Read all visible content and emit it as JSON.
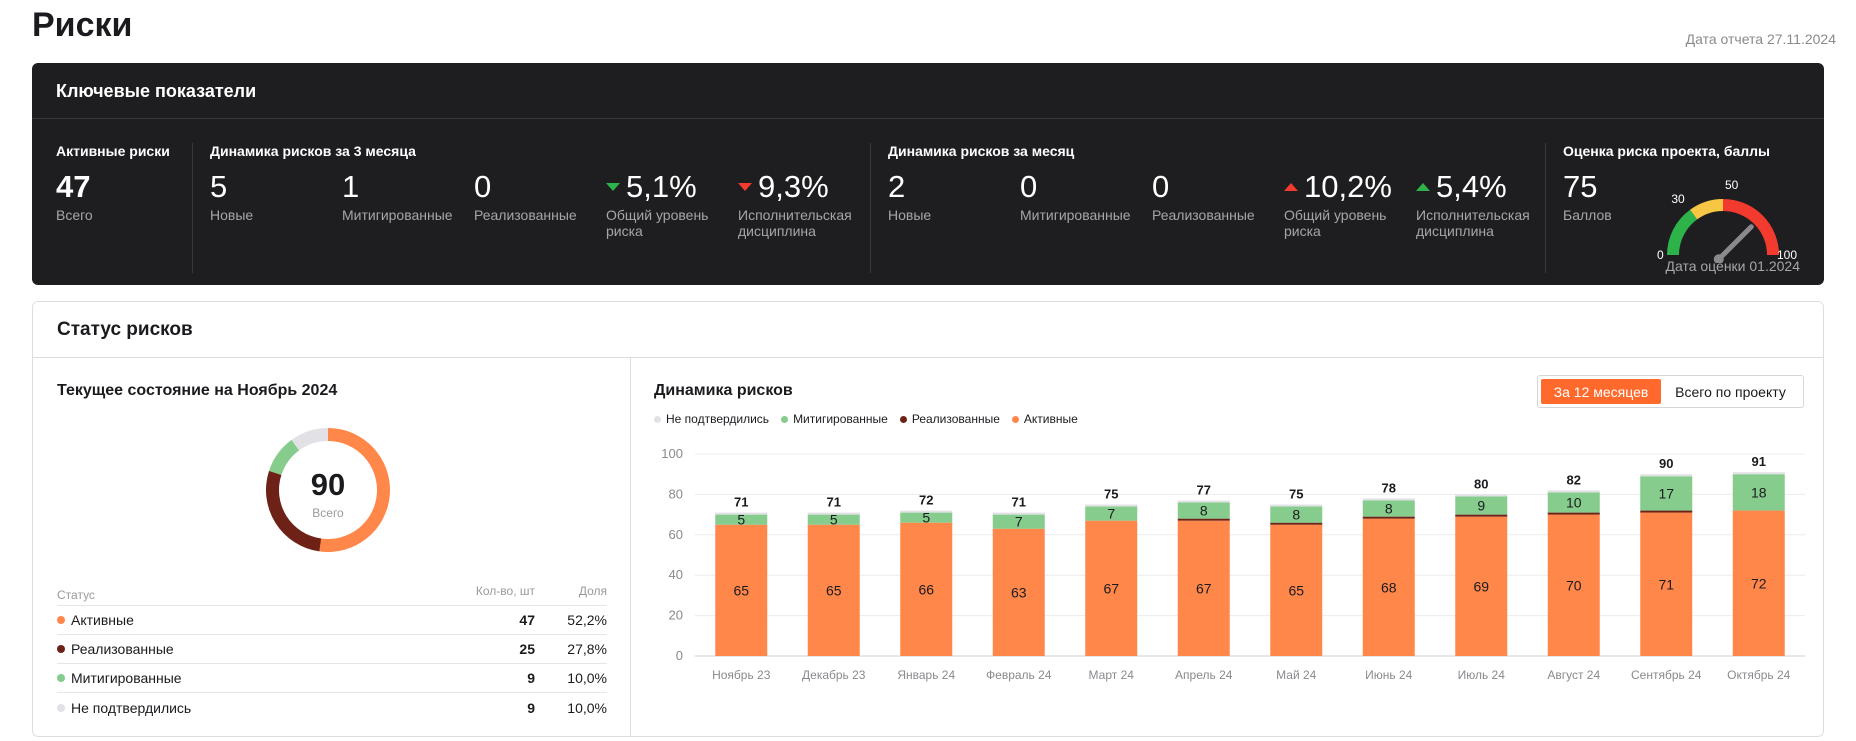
{
  "page": {
    "title": "Риски",
    "report_date": "Дата отчета 27.11.2024"
  },
  "kpi": {
    "header": "Ключевые показатели",
    "active": {
      "title": "Активные риски",
      "value": "47",
      "label": "Всего"
    },
    "three_months": {
      "title": "Динамика рисков за 3 месяца",
      "new": {
        "value": "5",
        "label": "Новые"
      },
      "mitigated": {
        "value": "1",
        "label": "Митигированные"
      },
      "realized": {
        "value": "0",
        "label": "Реализованные"
      },
      "risk_level": {
        "value": "5,1%",
        "label": "Общий уровень риска",
        "trend": "down",
        "color": "#2db34a"
      },
      "discipline": {
        "value": "9,3%",
        "label": "Исполнительская дисциплина",
        "trend": "down",
        "color": "#f23b2e"
      }
    },
    "month": {
      "title": "Динамика рисков за месяц",
      "new": {
        "value": "2",
        "label": "Новые"
      },
      "mitigated": {
        "value": "0",
        "label": "Митигированные"
      },
      "realized": {
        "value": "0",
        "label": "Реализованные"
      },
      "risk_level": {
        "value": "10,2%",
        "label": "Общий уровень риска",
        "trend": "up",
        "color": "#f23b2e"
      },
      "discipline": {
        "value": "5,4%",
        "label": "Исполнительская дисциплина",
        "trend": "up",
        "color": "#2db34a"
      }
    },
    "project_score": {
      "title": "Оценка риска проекта, баллы",
      "value": "75",
      "label": "Баллов",
      "gauge_value": 75,
      "gauge_ticks": [
        "0",
        "30",
        "50",
        "100"
      ],
      "gauge_colors": [
        "#2db34a",
        "#f6c744",
        "#f23b2e"
      ],
      "date": "Дата оценки 01.2024"
    }
  },
  "status": {
    "header": "Статус рисков",
    "current": {
      "title": "Текущее состояние на Ноябрь 2024",
      "total": "90",
      "total_label": "Всего",
      "table_headers": {
        "status": "Статус",
        "count": "Кол-во, шт",
        "share": "Доля"
      },
      "rows": [
        {
          "name": "Активные",
          "count": "47",
          "share": "52,2%",
          "color": "#ff874a",
          "value": 47
        },
        {
          "name": "Реализованные",
          "count": "25",
          "share": "27,8%",
          "color": "#6e2217",
          "value": 25
        },
        {
          "name": "Митигированные",
          "count": "9",
          "share": "10,0%",
          "color": "#86cc8c",
          "value": 9
        },
        {
          "name": "Не подтвердились",
          "count": "9",
          "share": "10,0%",
          "color": "#e2e2e6",
          "value": 9
        }
      ]
    },
    "dynamics": {
      "title": "Динамика рисков",
      "toggle": {
        "active": "За 12 месяцев",
        "inactive": "Всего по проекту"
      }
    }
  },
  "chart_data": {
    "type": "bar",
    "stacked": true,
    "title": "Динамика рисков",
    "categories": [
      "Ноябрь 23",
      "Декабрь 23",
      "Январь 24",
      "Февраль 24",
      "Март 24",
      "Апрель 24",
      "Май 24",
      "Июнь 24",
      "Июль 24",
      "Август 24",
      "Сентябрь 24",
      "Октябрь 24"
    ],
    "series": [
      {
        "name": "Активные",
        "color": "#ff874a",
        "values": [
          65,
          65,
          66,
          63,
          67,
          67,
          65,
          68,
          69,
          70,
          71,
          72
        ]
      },
      {
        "name": "Реализованные",
        "color": "#6e2217",
        "values": [
          0,
          0,
          0,
          0,
          0,
          1,
          1,
          1,
          1,
          1,
          1,
          0
        ]
      },
      {
        "name": "Митигированные",
        "color": "#86cc8c",
        "values": [
          5,
          5,
          5,
          7,
          7,
          8,
          8,
          8,
          9,
          10,
          17,
          18
        ]
      },
      {
        "name": "Не подтвердились",
        "color": "#e2e2e6",
        "values": [
          1,
          1,
          1,
          1,
          1,
          1,
          1,
          1,
          1,
          1,
          1,
          1
        ]
      }
    ],
    "totals": [
      71,
      71,
      72,
      71,
      75,
      77,
      75,
      78,
      80,
      82,
      90,
      91
    ],
    "legend_order": [
      "Не подтвердились",
      "Митигированные",
      "Реализованные",
      "Активные"
    ],
    "ylim": [
      0,
      100
    ],
    "yticks": [
      0,
      20,
      40,
      60,
      80,
      100
    ],
    "grid": true,
    "legend": "top-left"
  }
}
